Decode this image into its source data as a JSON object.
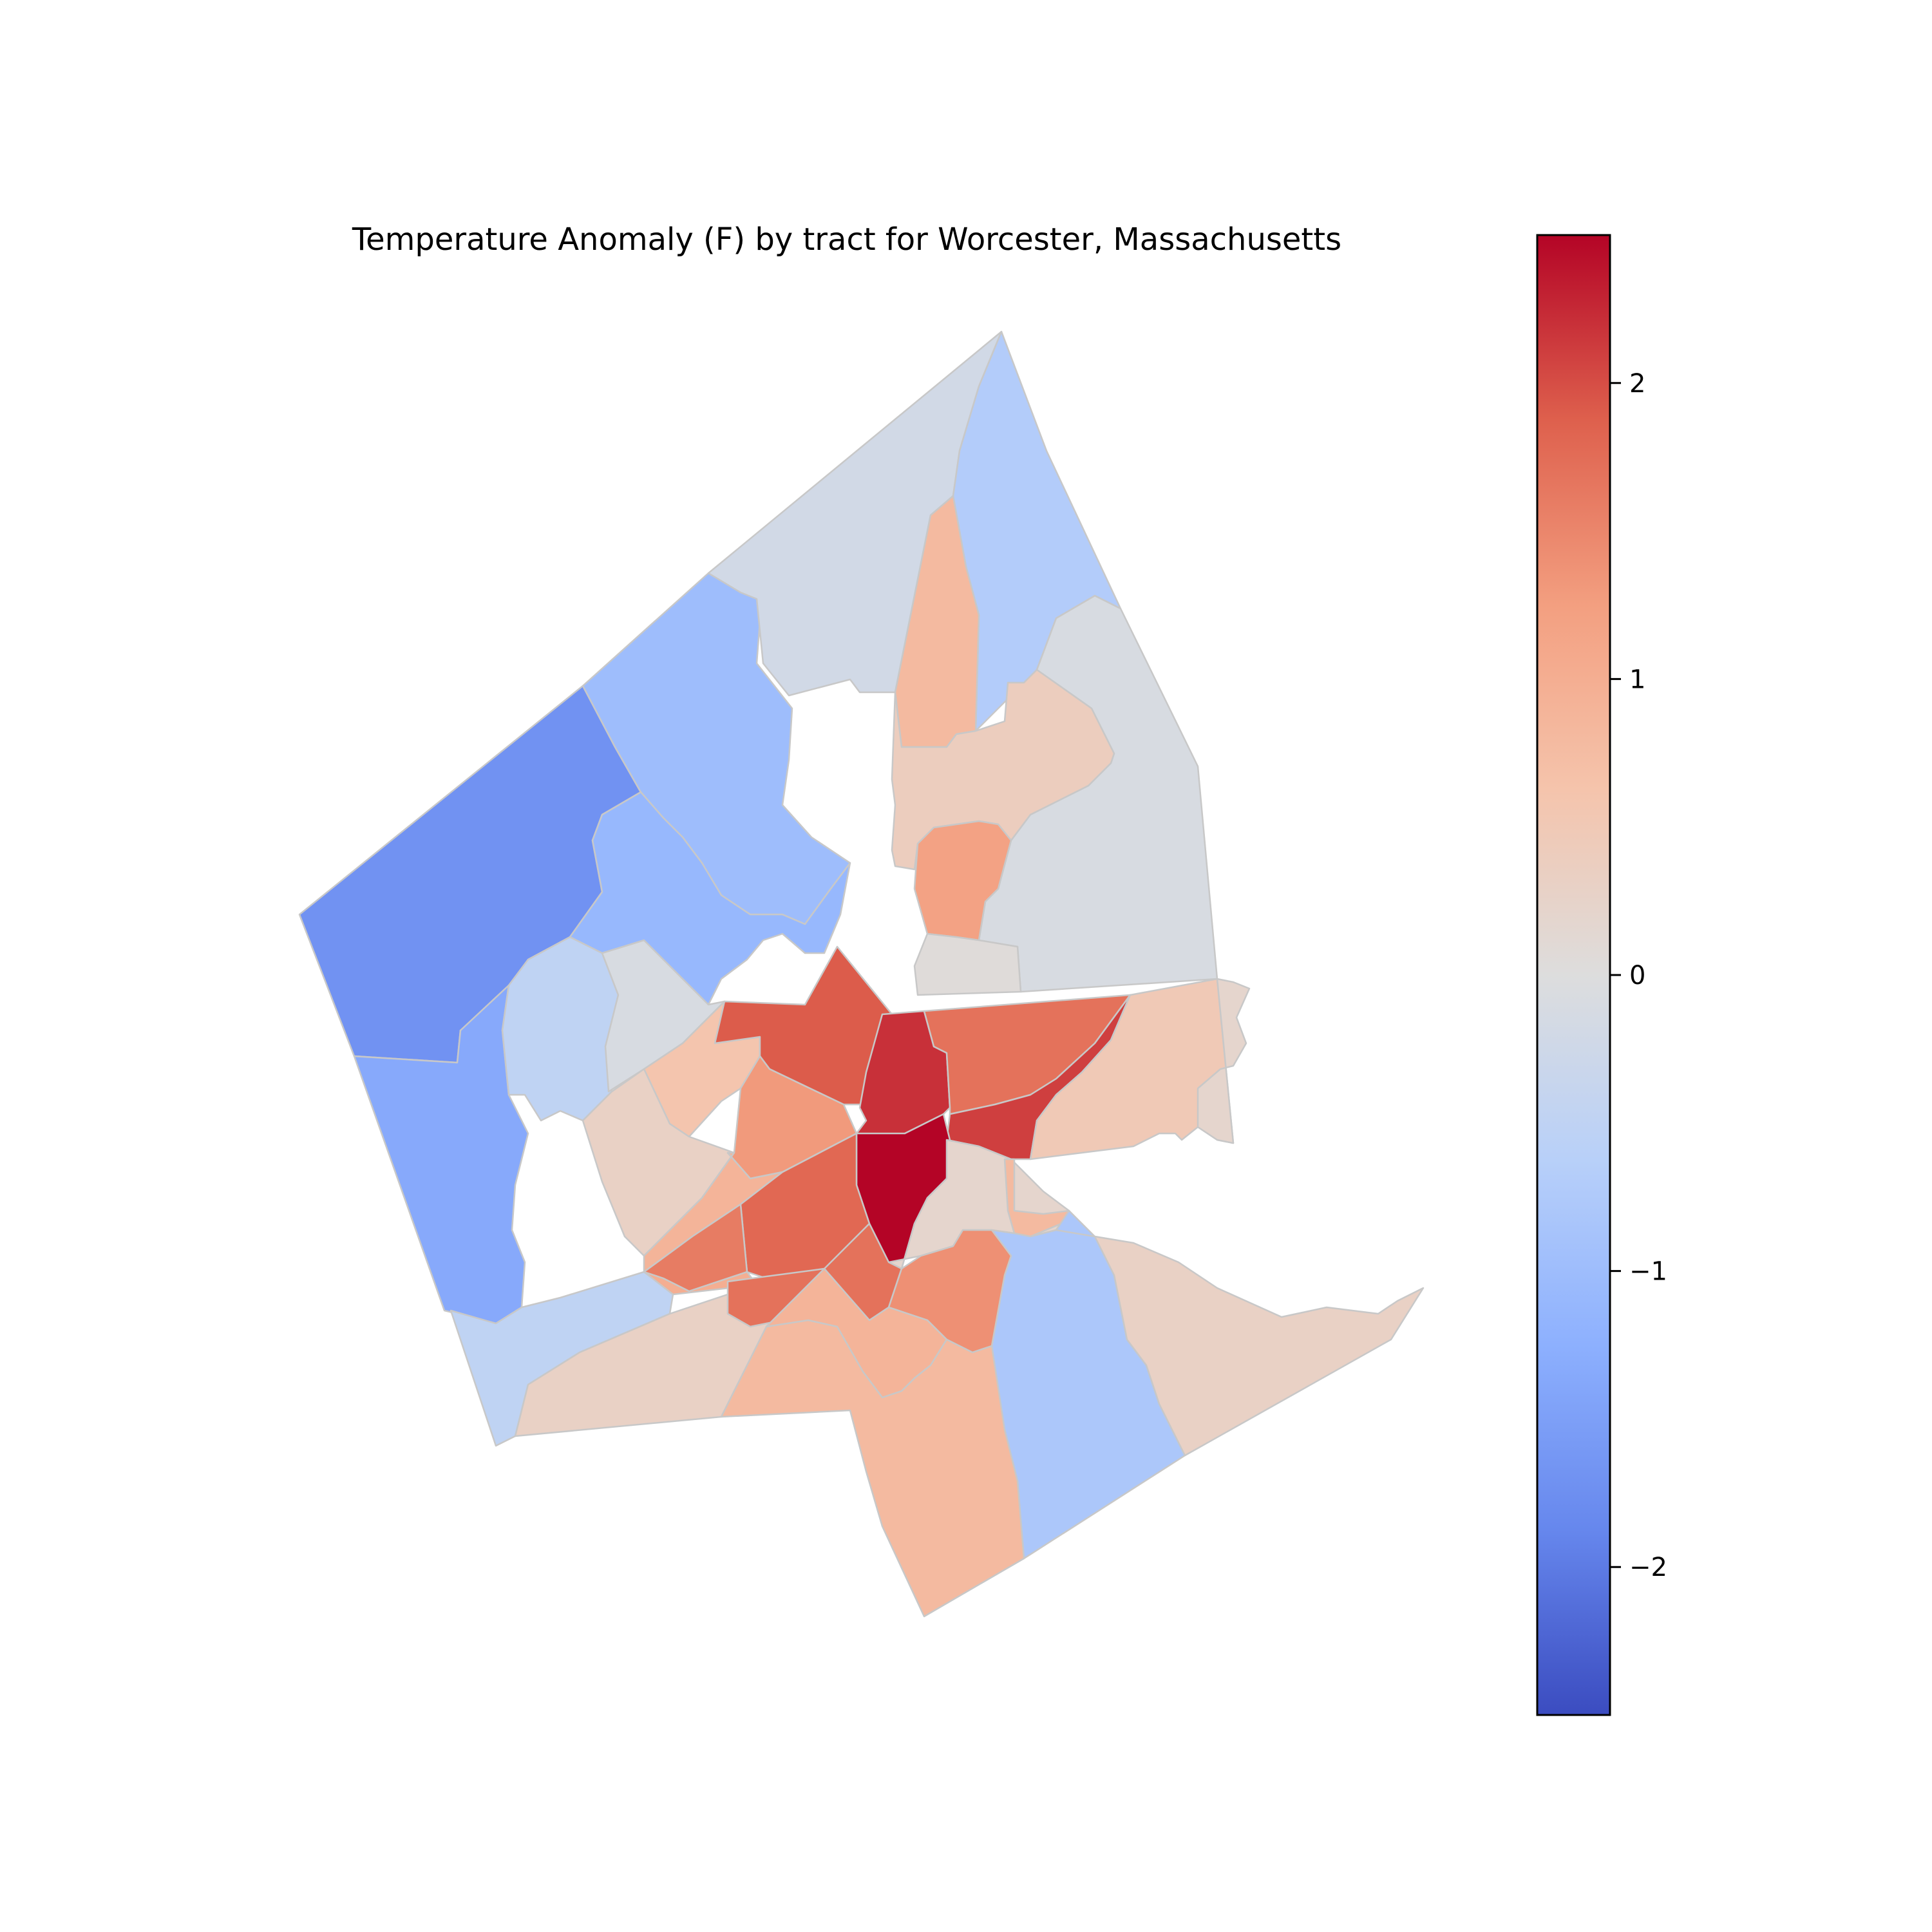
{
  "title": "Temperature Anomaly (F) by tract for Worcester, Massachusetts",
  "colorbar": {
    "min": -2.5,
    "max": 2.5,
    "ticks": [
      {
        "value": 2,
        "label": "2"
      },
      {
        "value": 1,
        "label": "1"
      },
      {
        "value": 0,
        "label": "0"
      },
      {
        "value": -1,
        "label": "−1"
      },
      {
        "value": -2,
        "label": "−2"
      }
    ],
    "colormap": "coolwarm",
    "stops": [
      {
        "v": -2.5,
        "color": "#3b4cc0"
      },
      {
        "v": -1.875,
        "color": "#6687ed"
      },
      {
        "v": -1.25,
        "color": "#8db0fe"
      },
      {
        "v": -0.625,
        "color": "#b8d0f9"
      },
      {
        "v": 0,
        "color": "#dddddd"
      },
      {
        "v": 0.625,
        "color": "#f5c4ac"
      },
      {
        "v": 1.25,
        "color": "#f39f80"
      },
      {
        "v": 1.875,
        "color": "#de604d"
      },
      {
        "v": 2.5,
        "color": "#b40426"
      }
    ]
  },
  "chart_data": {
    "type": "choropleth",
    "title": "Temperature Anomaly (F) by tract for Worcester, Massachusetts",
    "value_units": "F",
    "value_range": [
      -2.5,
      2.5
    ],
    "tracts": [
      {
        "id": "t01",
        "value": -1.7
      },
      {
        "id": "t02",
        "value": -1.35
      },
      {
        "id": "t03",
        "value": -1.0
      },
      {
        "id": "t04",
        "value": -1.1
      },
      {
        "id": "t05",
        "value": -0.2
      },
      {
        "id": "t06",
        "value": -0.7
      },
      {
        "id": "t07",
        "value": 0.8
      },
      {
        "id": "t08",
        "value": -0.1
      },
      {
        "id": "t09",
        "value": 0.4
      },
      {
        "id": "t10",
        "value": 1.2
      },
      {
        "id": "t11",
        "value": 0.05
      },
      {
        "id": "t12",
        "value": -0.5
      },
      {
        "id": "t13",
        "value": -0.1
      },
      {
        "id": "t14",
        "value": 0.6
      },
      {
        "id": "t15",
        "value": 0.3
      },
      {
        "id": "t16",
        "value": 1.9
      },
      {
        "id": "t17",
        "value": 2.2
      },
      {
        "id": "t18",
        "value": 1.7
      },
      {
        "id": "t19",
        "value": 2.1
      },
      {
        "id": "t20",
        "value": 0.5
      },
      {
        "id": "t21",
        "value": 1.3
      },
      {
        "id": "t22",
        "value": 0.9
      },
      {
        "id": "t23",
        "value": 2.5
      },
      {
        "id": "t24",
        "value": 1.8
      },
      {
        "id": "t25",
        "value": 1.6
      },
      {
        "id": "t26",
        "value": 1.0
      },
      {
        "id": "t27",
        "value": 0.2
      },
      {
        "id": "t28",
        "value": 0.8
      },
      {
        "id": "t29",
        "value": -0.8
      },
      {
        "id": "t30",
        "value": 0.3
      },
      {
        "id": "t31",
        "value": -0.5
      },
      {
        "id": "t32",
        "value": 0.3
      },
      {
        "id": "t33",
        "value": 1.7
      },
      {
        "id": "t34",
        "value": 1.4
      },
      {
        "id": "t35",
        "value": 0.9
      },
      {
        "id": "t36",
        "value": 0.8
      },
      {
        "id": "t37",
        "value": 0.2
      }
    ]
  }
}
